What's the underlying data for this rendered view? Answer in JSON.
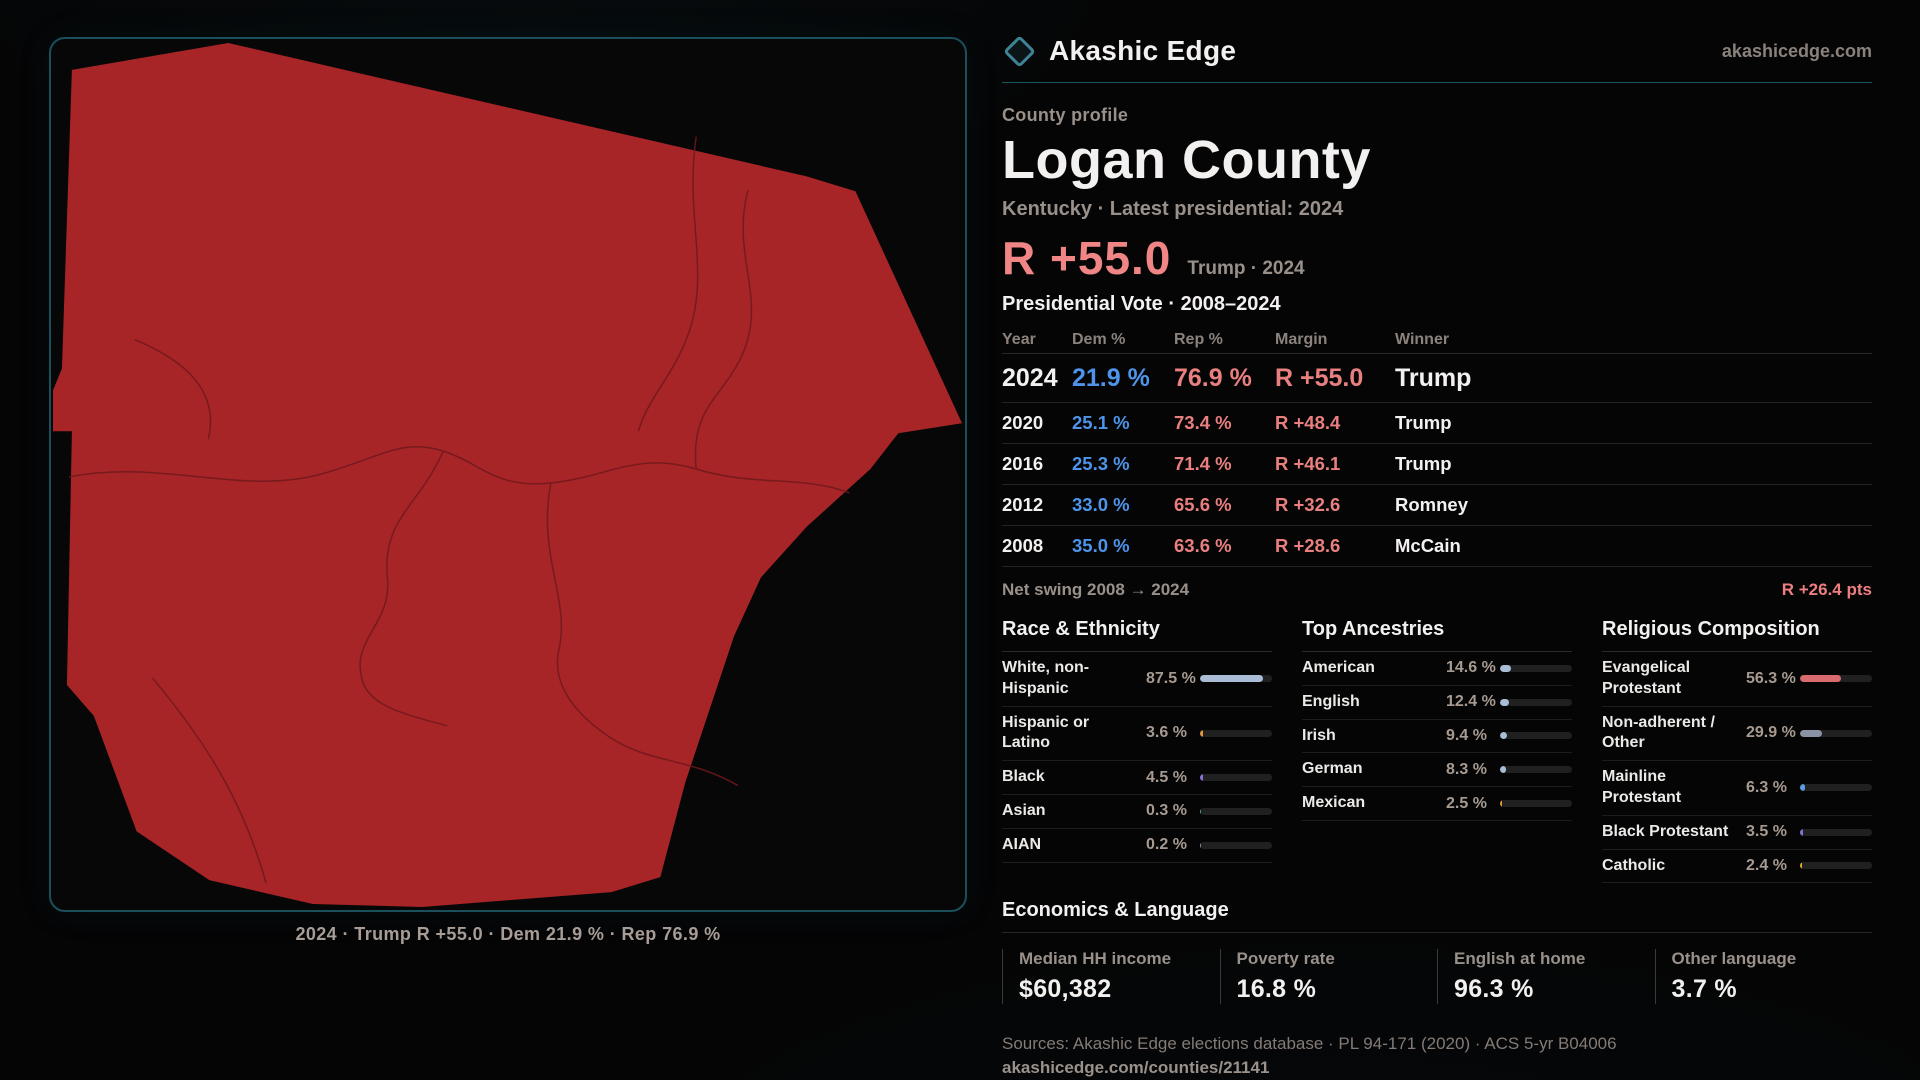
{
  "brand": {
    "name": "Akashic Edge",
    "site": "akashicedge.com"
  },
  "profile": {
    "kicker": "County profile",
    "title": "Logan County",
    "subtitle": "Kentucky · Latest presidential: 2024"
  },
  "headline": {
    "margin": "R +55.0",
    "context": "Trump · 2024"
  },
  "map": {
    "caption": "2024 · Trump R +55.0 · Dem 21.9 % · Rep 76.9 %",
    "fill_color": "#a72427",
    "border_color": "#1a4f5b"
  },
  "vote_table": {
    "title": "Presidential Vote · 2008–2024",
    "columns": [
      "Year",
      "Dem %",
      "Rep %",
      "Margin",
      "Winner"
    ],
    "rows": [
      {
        "year": "2024",
        "dem": "21.9 %",
        "rep": "76.9 %",
        "margin": "R +55.0",
        "winner": "Trump"
      },
      {
        "year": "2020",
        "dem": "25.1 %",
        "rep": "73.4 %",
        "margin": "R +48.4",
        "winner": "Trump"
      },
      {
        "year": "2016",
        "dem": "25.3 %",
        "rep": "71.4 %",
        "margin": "R +46.1",
        "winner": "Trump"
      },
      {
        "year": "2012",
        "dem": "33.0 %",
        "rep": "65.6 %",
        "margin": "R +32.6",
        "winner": "Romney"
      },
      {
        "year": "2008",
        "dem": "35.0 %",
        "rep": "63.6 %",
        "margin": "R +28.6",
        "winner": "McCain"
      }
    ]
  },
  "net_swing": {
    "label": "Net swing 2008 → 2024",
    "value": "R +26.4 pts"
  },
  "demographics": [
    {
      "title": "Race & Ethnicity",
      "rows": [
        {
          "label": "White, non-\nHispanic",
          "value": "87.5 %",
          "pct": 87.5,
          "color": "#a9bed6"
        },
        {
          "label": "Hispanic or Latino",
          "value": "3.6 %",
          "pct": 3.6,
          "color": "#e3973a"
        },
        {
          "label": "Black",
          "value": "4.5 %",
          "pct": 4.5,
          "color": "#8a6fd4"
        },
        {
          "label": "Asian",
          "value": "0.3 %",
          "pct": 0.3,
          "color": "#46a57c"
        },
        {
          "label": "AIAN",
          "value": "0.2 %",
          "pct": 0.2,
          "color": "#8a93a3"
        }
      ]
    },
    {
      "title": "Top Ancestries",
      "rows": [
        {
          "label": "American",
          "value": "14.6 %",
          "pct": 14.6,
          "color": "#a9bed6"
        },
        {
          "label": "English",
          "value": "12.4 %",
          "pct": 12.4,
          "color": "#a9bed6"
        },
        {
          "label": "Irish",
          "value": "9.4 %",
          "pct": 9.4,
          "color": "#a9bed6"
        },
        {
          "label": "German",
          "value": "8.3 %",
          "pct": 8.3,
          "color": "#a9bed6"
        },
        {
          "label": "Mexican",
          "value": "2.5 %",
          "pct": 2.5,
          "color": "#e3973a"
        }
      ]
    },
    {
      "title": "Religious Composition",
      "rows": [
        {
          "label": "Evangelical\nProtestant",
          "value": "56.3 %",
          "pct": 56.3,
          "color": "#d96b6e"
        },
        {
          "label": "Non-adherent /\nOther",
          "value": "29.9 %",
          "pct": 29.9,
          "color": "#8a93a3"
        },
        {
          "label": "Mainline\nProtestant",
          "value": "6.3 %",
          "pct": 6.3,
          "color": "#5b9ce0"
        },
        {
          "label": "Black Protestant",
          "value": "3.5 %",
          "pct": 3.5,
          "color": "#8a6fd4"
        },
        {
          "label": "Catholic",
          "value": "2.4 %",
          "pct": 2.4,
          "color": "#ddab2f"
        }
      ]
    }
  ],
  "economics": {
    "title": "Economics & Language",
    "stats": [
      {
        "label": "Median HH income",
        "value": "$60,382"
      },
      {
        "label": "Poverty rate",
        "value": "16.8 %"
      },
      {
        "label": "English at home",
        "value": "96.3 %"
      },
      {
        "label": "Other language",
        "value": "3.7 %"
      }
    ]
  },
  "footer": {
    "sources": "Sources: Akashic Edge elections database · PL 94-171 (2020) · ACS 5-yr B04006",
    "url": "akashicedge.com/counties/21141"
  },
  "colors": {
    "accent_teal": "#3e8496",
    "dem_blue": "#4d94ea",
    "rep_red": "#e97f7f",
    "headline_red": "#ef8585",
    "county_fill": "#a72427",
    "panel_border": "#1a4f5b"
  }
}
